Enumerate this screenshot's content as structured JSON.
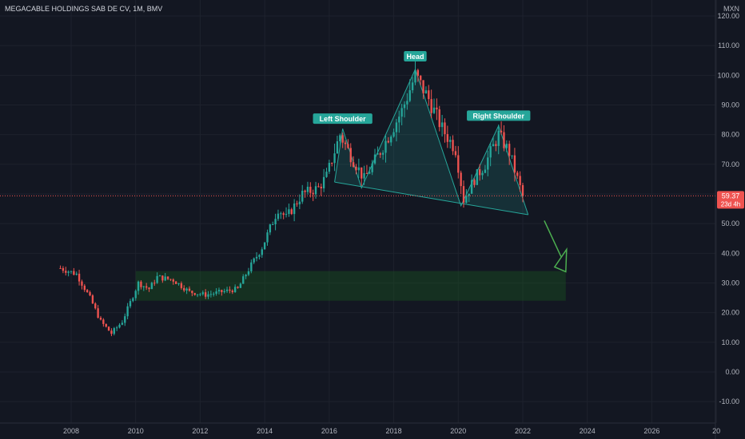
{
  "header": {
    "title": "MEGACABLE HOLDINGS SAB DE CV, 1M, BMV",
    "currency": "MXN"
  },
  "price_tag": {
    "price": "59.37",
    "countdown": "23d 4h",
    "color": "#ef5350"
  },
  "colors": {
    "background": "#131722",
    "grid": "#1e222d",
    "up": "#26a69a",
    "down": "#ef5350",
    "pattern_fill": "#26a69a",
    "zone_fill": "#1b5e20",
    "arrow": "#4caf50"
  },
  "chart_data": {
    "type": "candlestick",
    "title": "MEGACABLE HOLDINGS SAB DE CV, 1M, BMV",
    "y_unit": "MXN",
    "ylim": [
      -15,
      127
    ],
    "y_ticks": [
      "-10.00",
      "0.00",
      "10.00",
      "20.00",
      "30.00",
      "40.00",
      "50.00",
      "60.00",
      "70.00",
      "80.00",
      "90.00",
      "100.00",
      "110.00",
      "120.00"
    ],
    "x_ticks": [
      "2008",
      "2010",
      "2012",
      "2014",
      "2016",
      "2018",
      "2020",
      "2022",
      "2024",
      "2026",
      "20"
    ],
    "x_range": [
      "2007-02",
      "2028-12"
    ],
    "grid": false,
    "last_price": 59.37,
    "anchors": [
      [
        "2007-09",
        35
      ],
      [
        "2008-03",
        33
      ],
      [
        "2008-08",
        25
      ],
      [
        "2008-12",
        17
      ],
      [
        "2009-04",
        13
      ],
      [
        "2009-08",
        17
      ],
      [
        "2010-02",
        30
      ],
      [
        "2010-06",
        28
      ],
      [
        "2010-09",
        32
      ],
      [
        "2011-03",
        31
      ],
      [
        "2011-09",
        27
      ],
      [
        "2012-03",
        26
      ],
      [
        "2012-09",
        27
      ],
      [
        "2013-03",
        28
      ],
      [
        "2013-06",
        33
      ],
      [
        "2013-12",
        42
      ],
      [
        "2014-06",
        55
      ],
      [
        "2014-09",
        52
      ],
      [
        "2015-03",
        60
      ],
      [
        "2015-09",
        62
      ],
      [
        "2015-12",
        66
      ],
      [
        "2016-05",
        80
      ],
      [
        "2016-09",
        73
      ],
      [
        "2017-02",
        65
      ],
      [
        "2017-09",
        76
      ],
      [
        "2018-04",
        88
      ],
      [
        "2018-09",
        100
      ],
      [
        "2019-02",
        92
      ],
      [
        "2019-07",
        82
      ],
      [
        "2019-12",
        75
      ],
      [
        "2020-03",
        58
      ],
      [
        "2020-07",
        65
      ],
      [
        "2020-11",
        70
      ],
      [
        "2021-04",
        80
      ],
      [
        "2021-08",
        74
      ],
      [
        "2021-11",
        65
      ],
      [
        "2022-01",
        59.37
      ]
    ],
    "annotations": [
      {
        "text": "Left Shoulder",
        "x": "2016-06",
        "y": 85
      },
      {
        "text": "Head",
        "x": "2018-09",
        "y": 106
      },
      {
        "text": "Right Shoulder",
        "x": "2021-04",
        "y": 86
      }
    ],
    "pattern": {
      "points": [
        [
          "2016-03",
          64
        ],
        [
          "2016-06",
          82
        ],
        [
          "2017-01",
          62
        ],
        [
          "2018-09",
          102
        ],
        [
          "2020-02",
          56
        ],
        [
          "2021-04",
          83
        ],
        [
          "2022-03",
          53
        ]
      ],
      "neckline": [
        [
          "2016-03",
          64
        ],
        [
          "2022-03",
          53
        ]
      ]
    },
    "zone": {
      "x": [
        "2010-01",
        "2023-05"
      ],
      "y": [
        24,
        34
      ]
    },
    "arrow": {
      "from": [
        "2022-09",
        51
      ],
      "to": [
        "2023-05",
        37
      ]
    }
  }
}
